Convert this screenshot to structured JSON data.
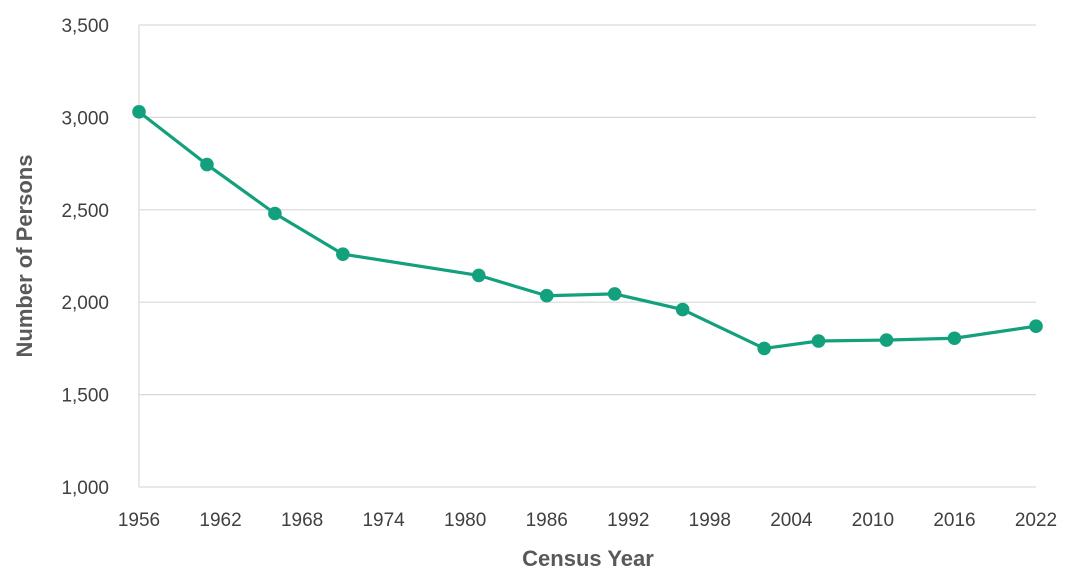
{
  "chart_data": {
    "type": "line",
    "title": "",
    "xlabel": "Census Year",
    "ylabel": "Number of Persons",
    "x_ticks": [
      "1956",
      "1962",
      "1968",
      "1974",
      "1980",
      "1986",
      "1992",
      "1998",
      "2004",
      "2010",
      "2016",
      "2022"
    ],
    "y_ticks": [
      "1,000",
      "1,500",
      "2,000",
      "2,500",
      "3,000",
      "3,500"
    ],
    "xlim": [
      1956,
      2022
    ],
    "ylim": [
      1000,
      3500
    ],
    "grid": true,
    "legend": "none",
    "colors": {
      "series": "#13a07d",
      "grid": "#d9d9d9",
      "tick_text": "#404040",
      "axis_title": "#595959"
    },
    "series": [
      {
        "x": [
          1956,
          1961,
          1966,
          1971,
          1981,
          1986,
          1991,
          1996,
          2002,
          2006,
          2011,
          2016,
          2022
        ],
        "values": [
          3030,
          2745,
          2480,
          2260,
          2145,
          2035,
          2045,
          1960,
          1750,
          1790,
          1795,
          1805,
          1870
        ]
      }
    ]
  }
}
